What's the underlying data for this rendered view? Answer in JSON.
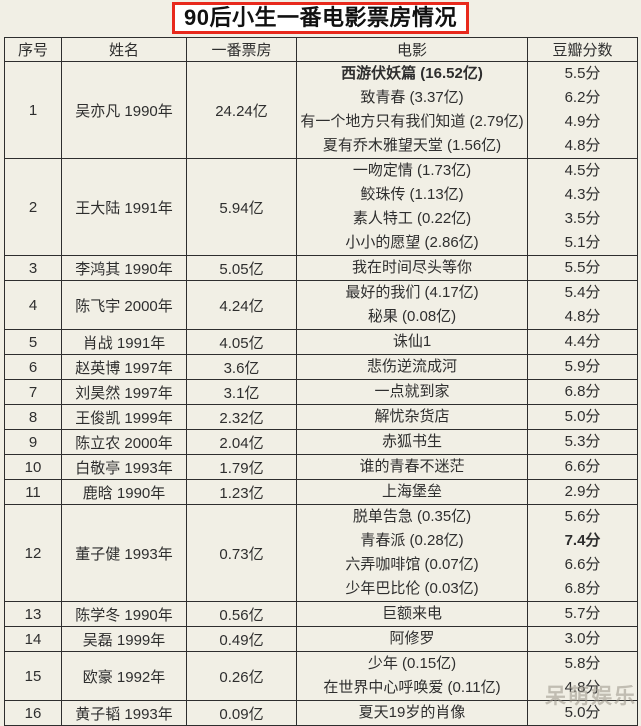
{
  "chart_data": {
    "type": "table",
    "title": "90后小生一番电影票房情况",
    "columns": [
      "序号",
      "姓名",
      "一番票房",
      "电影",
      "豆瓣分数"
    ],
    "rows": [
      {
        "no": "1",
        "name": "吴亦凡 1990年",
        "box_office": "24.24亿",
        "movies": [
          {
            "title": "西游伏妖篇 (16.52亿)",
            "score": "5.5分",
            "title_bold": true
          },
          {
            "title": "致青春 (3.37亿)",
            "score": "6.2分"
          },
          {
            "title": "有一个地方只有我们知道 (2.79亿)",
            "score": "4.9分"
          },
          {
            "title": "夏有乔木雅望天堂 (1.56亿)",
            "score": "4.8分"
          }
        ]
      },
      {
        "no": "2",
        "name": "王大陆 1991年",
        "box_office": "5.94亿",
        "movies": [
          {
            "title": "一吻定情 (1.73亿)",
            "score": "4.5分"
          },
          {
            "title": "鲛珠传 (1.13亿)",
            "score": "4.3分"
          },
          {
            "title": "素人特工 (0.22亿)",
            "score": "3.5分"
          },
          {
            "title": "小小的愿望 (2.86亿)",
            "score": "5.1分"
          }
        ]
      },
      {
        "no": "3",
        "name": "李鸿其 1990年",
        "box_office": "5.05亿",
        "movies": [
          {
            "title": "我在时间尽头等你",
            "score": "5.5分"
          }
        ]
      },
      {
        "no": "4",
        "name": "陈飞宇 2000年",
        "box_office": "4.24亿",
        "movies": [
          {
            "title": "最好的我们 (4.17亿)",
            "score": "5.4分"
          },
          {
            "title": "秘果 (0.08亿)",
            "score": "4.8分"
          }
        ]
      },
      {
        "no": "5",
        "name": "肖战 1991年",
        "box_office": "4.05亿",
        "movies": [
          {
            "title": "诛仙1",
            "score": "4.4分"
          }
        ]
      },
      {
        "no": "6",
        "name": "赵英博 1997年",
        "box_office": "3.6亿",
        "movies": [
          {
            "title": "悲伤逆流成河",
            "score": "5.9分"
          }
        ]
      },
      {
        "no": "7",
        "name": "刘昊然 1997年",
        "box_office": "3.1亿",
        "movies": [
          {
            "title": "一点就到家",
            "score": "6.8分"
          }
        ]
      },
      {
        "no": "8",
        "name": "王俊凯 1999年",
        "box_office": "2.32亿",
        "movies": [
          {
            "title": "解忧杂货店",
            "score": "5.0分"
          }
        ]
      },
      {
        "no": "9",
        "name": "陈立农 2000年",
        "box_office": "2.04亿",
        "movies": [
          {
            "title": "赤狐书生",
            "score": "5.3分"
          }
        ]
      },
      {
        "no": "10",
        "name": "白敬亭 1993年",
        "box_office": "1.79亿",
        "movies": [
          {
            "title": "谁的青春不迷茫",
            "score": "6.6分"
          }
        ]
      },
      {
        "no": "11",
        "name": "鹿晗 1990年",
        "box_office": "1.23亿",
        "movies": [
          {
            "title": "上海堡垒",
            "score": "2.9分"
          }
        ]
      },
      {
        "no": "12",
        "name": "董子健 1993年",
        "box_office": "0.73亿",
        "movies": [
          {
            "title": "脱单告急 (0.35亿)",
            "score": "5.6分"
          },
          {
            "title": "青春派 (0.28亿)",
            "score": "7.4分",
            "score_bold": true
          },
          {
            "title": "六弄咖啡馆 (0.07亿)",
            "score": "6.6分"
          },
          {
            "title": "少年巴比伦 (0.03亿)",
            "score": "6.8分"
          }
        ]
      },
      {
        "no": "13",
        "name": "陈学冬 1990年",
        "box_office": "0.56亿",
        "movies": [
          {
            "title": "巨额来电",
            "score": "5.7分"
          }
        ]
      },
      {
        "no": "14",
        "name": "吴磊 1999年",
        "box_office": "0.49亿",
        "movies": [
          {
            "title": "阿修罗",
            "score": "3.0分"
          }
        ]
      },
      {
        "no": "15",
        "name": "欧豪 1992年",
        "box_office": "0.26亿",
        "movies": [
          {
            "title": "少年 (0.15亿)",
            "score": "5.8分"
          },
          {
            "title": "在世界中心呼唤爱 (0.11亿)",
            "score": "4.8分"
          }
        ]
      },
      {
        "no": "16",
        "name": "黄子韬 1993年",
        "box_office": "0.09亿",
        "movies": [
          {
            "title": "夏天19岁的肖像",
            "score": "5.0分"
          }
        ]
      }
    ]
  },
  "watermark": "呆萌娱乐",
  "colors": {
    "page_bg": "#f1efe5",
    "title_border": "#e8291c",
    "title_bg": "#ffffff",
    "table_border": "#2e2e2e",
    "text": "#2e2e2e",
    "watermark": "#9a958a"
  }
}
